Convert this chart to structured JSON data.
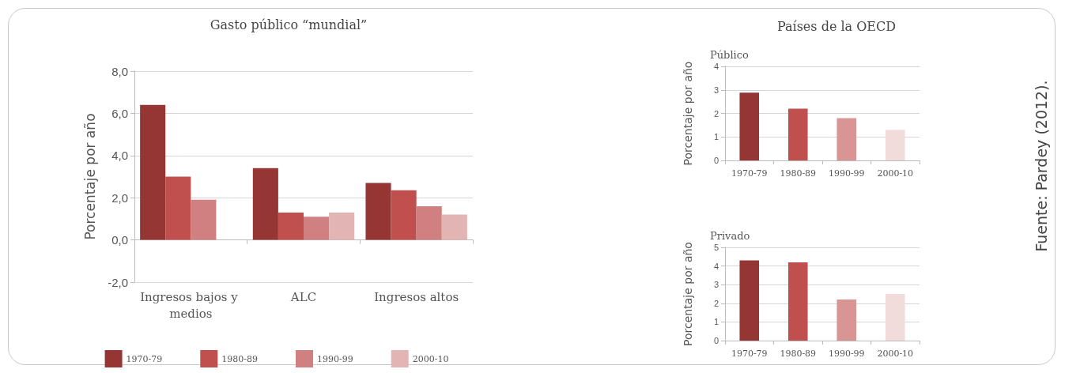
{
  "chart_data": [
    {
      "type": "bar",
      "title": "Gasto público “mundial”",
      "ylabel": "Porcentaje por año",
      "categories": [
        "Ingresos bajos y medios",
        "ALC",
        "Ingresos altos"
      ],
      "series": [
        {
          "name": "1970-79",
          "color": "#963634",
          "values": [
            6.4,
            3.4,
            2.7
          ]
        },
        {
          "name": "1980-89",
          "color": "#c0504d",
          "values": [
            3.0,
            1.3,
            2.35
          ]
        },
        {
          "name": "1990-99",
          "color": "#d08080",
          "values": [
            1.9,
            1.1,
            1.6
          ]
        },
        {
          "name": "2000-10",
          "color": "#e2b4b4",
          "values": [
            null,
            1.3,
            1.2
          ]
        }
      ],
      "ylim": [
        -2,
        8
      ],
      "yticks": [
        {
          "value": -2,
          "label": "-2,0"
        },
        {
          "value": 0,
          "label": "0,0"
        },
        {
          "value": 2,
          "label": "2,0"
        },
        {
          "value": 4,
          "label": "4,0"
        },
        {
          "value": 6,
          "label": "6,0"
        },
        {
          "value": 8,
          "label": "8,0"
        }
      ],
      "grid": "y",
      "legend": "bottom",
      "annotations": [
        "Fuente: Pardey (2012)."
      ]
    },
    {
      "type": "bar",
      "title": "Países de la OECD",
      "subtitle": "Público",
      "ylabel": "Porcentaje por año",
      "categories": [
        "1970-79",
        "1980-89",
        "1990-99",
        "2000-10"
      ],
      "values": [
        2.88,
        2.2,
        1.8,
        1.3
      ],
      "colors": [
        "#963634",
        "#c0504d",
        "#d99594",
        "#f2dcdb"
      ],
      "ylim": [
        0,
        4
      ],
      "yticks": [
        0,
        1,
        2,
        3,
        4
      ],
      "grid": "y"
    },
    {
      "type": "bar",
      "subtitle": "Privado",
      "ylabel": "Porcentaje por año",
      "categories": [
        "1970-79",
        "1980-89",
        "1990-99",
        "2000-10"
      ],
      "values": [
        4.3,
        4.2,
        2.2,
        2.5
      ],
      "colors": [
        "#963634",
        "#c0504d",
        "#d99594",
        "#f2dcdb"
      ],
      "ylim": [
        0,
        5
      ],
      "yticks": [
        0,
        1,
        2,
        3,
        4,
        5
      ],
      "grid": "y"
    }
  ]
}
